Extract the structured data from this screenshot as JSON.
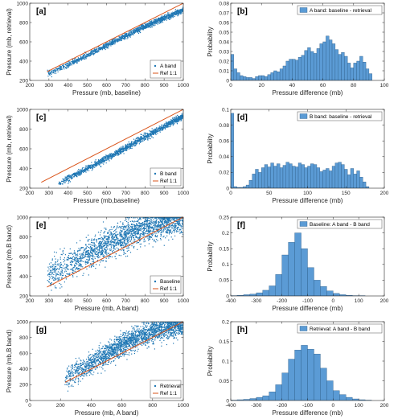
{
  "colors": {
    "scatter": "#1f77b4",
    "ref": "#d95319",
    "bar": "#5b9bd5",
    "bar_edge": "#2e5f8a",
    "axis": "#262626"
  },
  "chart_data": [
    {
      "panel": "[a]",
      "type": "scatter",
      "xlabel": "Pressure (mb, baseline)",
      "ylabel": "Pressure (mb, retrieval)",
      "xlim": [
        200,
        1000
      ],
      "ylim": [
        200,
        1000
      ],
      "xticks": [
        200,
        300,
        400,
        500,
        600,
        700,
        800,
        900,
        1000
      ],
      "yticks": [
        200,
        400,
        600,
        800,
        1000
      ],
      "series": [
        {
          "name": "A band",
          "kind": "points",
          "x_range": [
            290,
            1000
          ],
          "trend": [
            [
              290,
              265
            ],
            [
              400,
              360
            ],
            [
              600,
              560
            ],
            [
              800,
              760
            ],
            [
              1000,
              930
            ]
          ],
          "spread": 14,
          "n": 1400
        },
        {
          "name": "Ref 1:1",
          "kind": "line",
          "x": [
            290,
            1000
          ],
          "y": [
            290,
            1000
          ]
        }
      ],
      "legend": {
        "position": "bottom-right",
        "entries": [
          "A band",
          "Ref 1:1"
        ]
      }
    },
    {
      "panel": "[b]",
      "type": "bar",
      "xlabel": "Pressure difference (mb)",
      "ylabel": "Probability",
      "xlim": [
        0,
        100
      ],
      "ylim": [
        0,
        0.08
      ],
      "xticks": [
        0,
        20,
        40,
        60,
        80,
        100
      ],
      "yticks": [
        0,
        0.01,
        0.02,
        0.03,
        0.04,
        0.05,
        0.06,
        0.07,
        0.08
      ],
      "bin_width": 2,
      "bin_start": 0,
      "values": [
        0.027,
        0.012,
        0.008,
        0.005,
        0.004,
        0.003,
        0.003,
        0.002,
        0.004,
        0.005,
        0.005,
        0.004,
        0.006,
        0.008,
        0.01,
        0.009,
        0.012,
        0.015,
        0.02,
        0.022,
        0.022,
        0.021,
        0.024,
        0.026,
        0.031,
        0.034,
        0.03,
        0.028,
        0.033,
        0.038,
        0.04,
        0.046,
        0.042,
        0.038,
        0.032,
        0.027,
        0.029,
        0.025,
        0.018,
        0.013,
        0.018,
        0.02,
        0.025,
        0.019,
        0.012,
        0.007
      ],
      "legend": {
        "position": "top-right",
        "entries": [
          "A band: baseline - retrieval"
        ]
      }
    },
    {
      "panel": "[c]",
      "type": "scatter",
      "xlabel": "Pressure (mb,baseline)",
      "ylabel": "Pressure (mb, retrieval)",
      "xlim": [
        200,
        1000
      ],
      "ylim": [
        200,
        1000
      ],
      "xticks": [
        200,
        300,
        400,
        500,
        600,
        700,
        800,
        900,
        1000
      ],
      "yticks": [
        200,
        400,
        600,
        800,
        1000
      ],
      "series": [
        {
          "name": "B band",
          "kind": "points",
          "x_range": [
            350,
            1000
          ],
          "trend": [
            [
              350,
              250
            ],
            [
              400,
              300
            ],
            [
              600,
              500
            ],
            [
              800,
              720
            ],
            [
              1000,
              930
            ]
          ],
          "spread": 16,
          "n": 1400
        },
        {
          "name": "Ref 1:1",
          "kind": "line",
          "x": [
            260,
            1000
          ],
          "y": [
            260,
            1000
          ]
        }
      ],
      "legend": {
        "position": "bottom-right",
        "entries": [
          "B band",
          "Ref 1:1"
        ]
      }
    },
    {
      "panel": "[d]",
      "type": "bar",
      "xlabel": "Pressure difference (mb)",
      "ylabel": "Probability",
      "xlim": [
        0,
        200
      ],
      "ylim": [
        0,
        0.1
      ],
      "xticks": [
        0,
        50,
        100,
        150,
        200
      ],
      "yticks": [
        0,
        0.02,
        0.04,
        0.06,
        0.08,
        0.1
      ],
      "bin_width": 4,
      "bin_start": 0,
      "values": [
        0.095,
        0.002,
        0.001,
        0.001,
        0.002,
        0.004,
        0.01,
        0.018,
        0.024,
        0.02,
        0.026,
        0.03,
        0.027,
        0.032,
        0.028,
        0.031,
        0.026,
        0.029,
        0.033,
        0.031,
        0.028,
        0.027,
        0.032,
        0.03,
        0.026,
        0.028,
        0.031,
        0.03,
        0.026,
        0.021,
        0.023,
        0.025,
        0.022,
        0.028,
        0.032,
        0.033,
        0.03,
        0.024,
        0.017,
        0.025,
        0.018,
        0.022,
        0.014,
        0.008,
        0.002
      ],
      "legend": {
        "position": "top-right",
        "entries": [
          "B band: baseline - retrieval"
        ]
      }
    },
    {
      "panel": "[e]",
      "type": "scatter",
      "xlabel": "Pressure (mb, A band)",
      "ylabel": "Pressure (mb,B band)",
      "xlim": [
        200,
        1000
      ],
      "ylim": [
        200,
        1000
      ],
      "xticks": [
        200,
        300,
        400,
        500,
        600,
        700,
        800,
        900,
        1000
      ],
      "yticks": [
        200,
        400,
        600,
        800,
        1000
      ],
      "series": [
        {
          "name": "Baseline",
          "kind": "points",
          "x_range": [
            290,
            1000
          ],
          "trend": [
            [
              290,
              400
            ],
            [
              400,
              520
            ],
            [
              600,
              720
            ],
            [
              800,
              900
            ],
            [
              1000,
              980
            ]
          ],
          "spread": 75,
          "n": 2200
        },
        {
          "name": "Ref 1:1",
          "kind": "line",
          "x": [
            290,
            1000
          ],
          "y": [
            290,
            1000
          ]
        }
      ],
      "legend": {
        "position": "bottom-right",
        "entries": [
          "Baseline",
          "Ref 1:1"
        ]
      }
    },
    {
      "panel": "[f]",
      "type": "bar",
      "xlabel": "Pressure difference (mb)",
      "ylabel": "Probability",
      "xlim": [
        -400,
        200
      ],
      "ylim": [
        0,
        0.25
      ],
      "xticks": [
        -400,
        -300,
        -200,
        -100,
        0,
        100,
        200
      ],
      "yticks": [
        0,
        0.05,
        0.1,
        0.15,
        0.2,
        0.25
      ],
      "bin_width": 25,
      "bin_start": -400,
      "values": [
        0.001,
        0.002,
        0.004,
        0.006,
        0.01,
        0.018,
        0.032,
        0.068,
        0.13,
        0.17,
        0.2,
        0.15,
        0.09,
        0.05,
        0.03,
        0.016,
        0.008,
        0.004,
        0.002,
        0.001,
        0.001,
        0.0,
        0.0,
        0.0
      ],
      "legend": {
        "position": "top-right",
        "entries": [
          "Baseline: A band - B band"
        ]
      }
    },
    {
      "panel": "[g]",
      "type": "scatter",
      "xlabel": "Pressure (mb, A band)",
      "ylabel": "Pressure (mb,B band)",
      "xlim": [
        0,
        1000
      ],
      "ylim": [
        0,
        1000
      ],
      "xticks": [
        0,
        200,
        400,
        600,
        800,
        1000
      ],
      "yticks": [
        0,
        200,
        400,
        600,
        800,
        1000
      ],
      "series": [
        {
          "name": "Retrieval",
          "kind": "points",
          "x_range": [
            230,
            1000
          ],
          "trend": [
            [
              230,
              280
            ],
            [
              400,
              470
            ],
            [
              600,
              700
            ],
            [
              800,
              880
            ],
            [
              1000,
              970
            ]
          ],
          "spread": 70,
          "n": 2200
        },
        {
          "name": "Ref 1:1",
          "kind": "line",
          "x": [
            230,
            1000
          ],
          "y": [
            230,
            1000
          ]
        }
      ],
      "legend": {
        "position": "bottom-right",
        "entries": [
          "Retrieval",
          "Ref 1:1"
        ]
      }
    },
    {
      "panel": "[h]",
      "type": "bar",
      "xlabel": "Pressure difference (mb)",
      "ylabel": "Probability",
      "xlim": [
        -400,
        200
      ],
      "ylim": [
        0,
        0.2
      ],
      "xticks": [
        -400,
        -300,
        -200,
        -100,
        0,
        100,
        200
      ],
      "yticks": [
        0,
        0.05,
        0.1,
        0.15,
        0.2
      ],
      "bin_width": 25,
      "bin_start": -400,
      "values": [
        0.001,
        0.002,
        0.003,
        0.005,
        0.008,
        0.012,
        0.022,
        0.04,
        0.07,
        0.105,
        0.128,
        0.14,
        0.13,
        0.118,
        0.082,
        0.05,
        0.025,
        0.015,
        0.008,
        0.004,
        0.002,
        0.001,
        0.0,
        0.0
      ],
      "legend": {
        "position": "top-right",
        "entries": [
          "Retrieval: A band - B band"
        ]
      }
    }
  ]
}
